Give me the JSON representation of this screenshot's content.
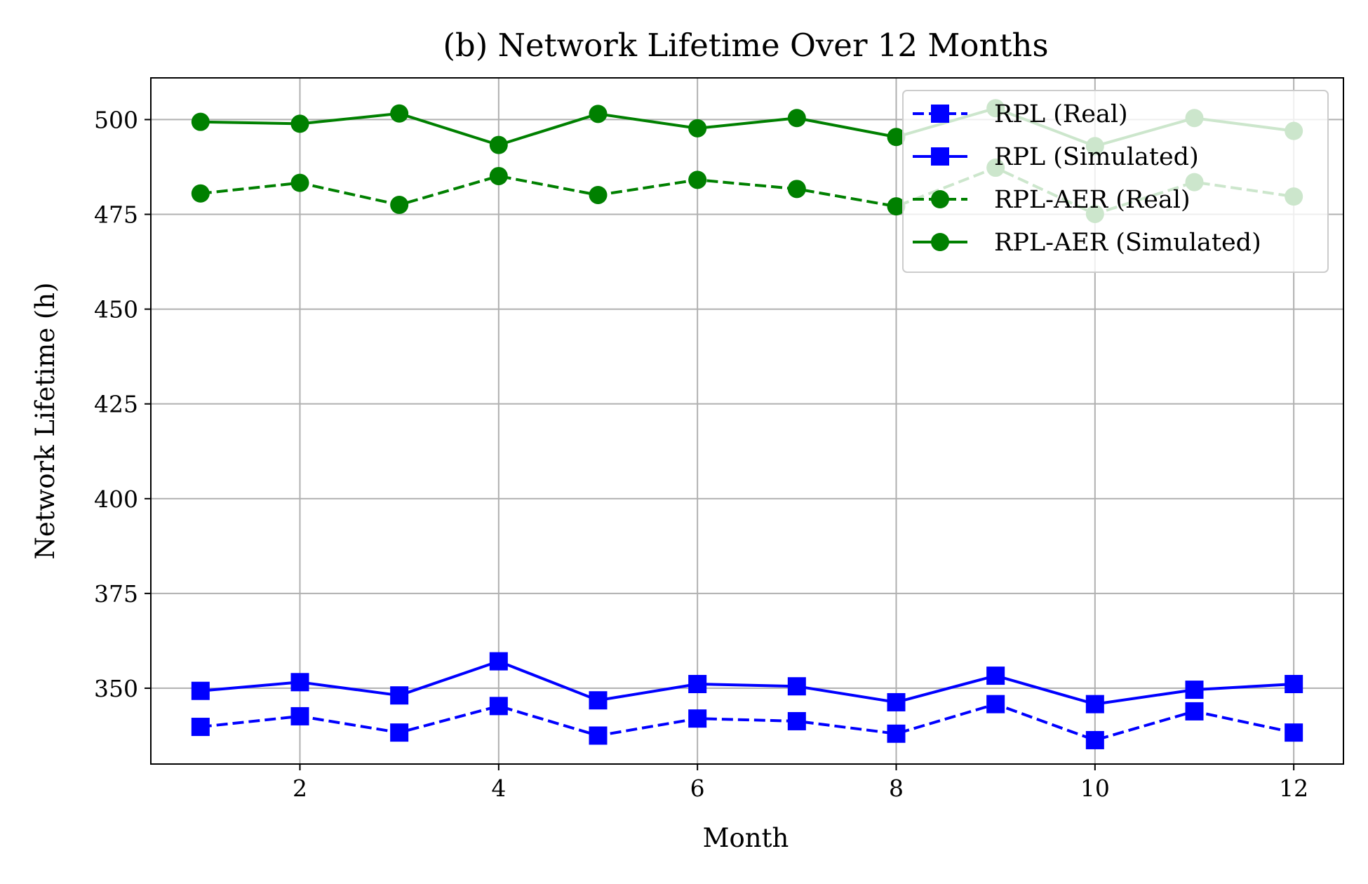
{
  "chart_data": {
    "type": "line",
    "title": "(b) Network Lifetime Over 12 Months",
    "xlabel": "Month",
    "ylabel": "Network Lifetime (h)",
    "xlim": [
      0.5,
      12.5
    ],
    "ylim": [
      330,
      511
    ],
    "xticks": [
      2,
      4,
      6,
      8,
      10,
      12
    ],
    "yticks": [
      350,
      375,
      400,
      425,
      450,
      475,
      500
    ],
    "grid": true,
    "legend_position": "top-right",
    "x": [
      1,
      2,
      3,
      4,
      5,
      6,
      7,
      8,
      9,
      10,
      11,
      12
    ],
    "series": [
      {
        "name": "RPL (Real)",
        "color": "#0000ff",
        "linestyle": "dashed",
        "marker": "square",
        "values": [
          339.8,
          342.6,
          338.3,
          345.3,
          337.5,
          342.0,
          341.3,
          338.0,
          345.8,
          336.3,
          343.9,
          338.3
        ]
      },
      {
        "name": "RPL (Simulated)",
        "color": "#0000ff",
        "linestyle": "solid",
        "marker": "square",
        "values": [
          349.3,
          351.6,
          348.1,
          357.1,
          346.8,
          351.1,
          350.5,
          346.3,
          353.3,
          345.8,
          349.6,
          351.1
        ]
      },
      {
        "name": "RPL-AER (Real)",
        "color": "#008000",
        "linestyle": "dashed",
        "marker": "circle",
        "values": [
          480.5,
          483.3,
          477.5,
          485.1,
          480.1,
          484.1,
          481.7,
          477.1,
          487.3,
          475.1,
          483.5,
          479.7
        ]
      },
      {
        "name": "RPL-AER (Simulated)",
        "color": "#008000",
        "linestyle": "solid",
        "marker": "circle",
        "values": [
          499.4,
          498.9,
          501.6,
          493.3,
          501.5,
          497.7,
          500.4,
          495.4,
          503.0,
          493.0,
          500.4,
          497.0
        ]
      }
    ]
  }
}
